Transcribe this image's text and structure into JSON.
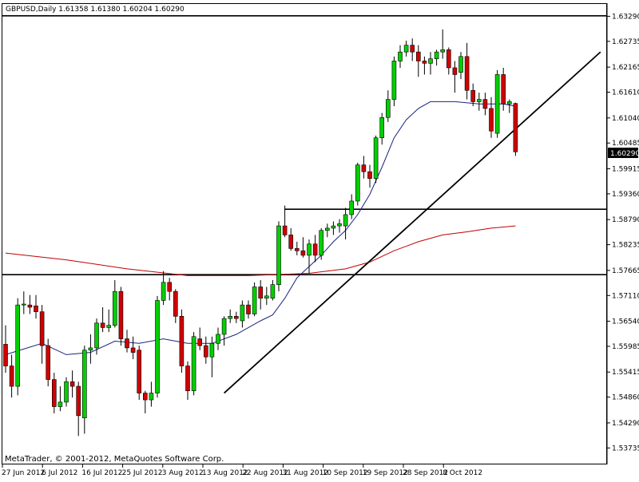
{
  "chart_data": {
    "type": "candlestick",
    "symbol_header": "GBPUSD,Daily  1.61358 1.61380 1.60204 1.60290",
    "copyright": "MetaTrader, © 2001-2012, MetaQuotes Software Corp.",
    "current_price_label": "1.60290",
    "y_range": [
      1.5337,
      1.6358
    ],
    "y_ticks": [
      "1.63290",
      "1.62735",
      "1.62165",
      "1.61610",
      "1.61040",
      "1.60485",
      "1.59915",
      "1.59360",
      "1.58790",
      "1.58235",
      "1.57665",
      "1.57110",
      "1.56540",
      "1.55985",
      "1.55415",
      "1.54860",
      "1.54290",
      "1.53735"
    ],
    "x_ticks": [
      "27 Jun 2012",
      "6 Jul 2012",
      "16 Jul 2012",
      "25 Jul 2012",
      "3 Aug 2012",
      "13 Aug 2012",
      "22 Aug 2012",
      "31 Aug 2012",
      "10 Sep 2012",
      "19 Sep 2012",
      "28 Sep 2012",
      "8 Oct 2012"
    ],
    "candles": [
      [
        1.5603,
        1.5645,
        1.554,
        1.5555
      ],
      [
        1.5555,
        1.558,
        1.5485,
        1.551
      ],
      [
        1.551,
        1.5705,
        1.549,
        1.569
      ],
      [
        1.569,
        1.572,
        1.567,
        1.5692
      ],
      [
        1.569,
        1.5712,
        1.567,
        1.5685
      ],
      [
        1.5688,
        1.5712,
        1.566,
        1.5675
      ],
      [
        1.5675,
        1.569,
        1.556,
        1.56
      ],
      [
        1.56,
        1.5615,
        1.551,
        1.5525
      ],
      [
        1.5525,
        1.554,
        1.545,
        1.5465
      ],
      [
        1.5465,
        1.551,
        1.5455,
        1.5475
      ],
      [
        1.5475,
        1.553,
        1.5465,
        1.552
      ],
      [
        1.552,
        1.5545,
        1.5485,
        1.551
      ],
      [
        1.551,
        1.552,
        1.54,
        1.5445
      ],
      [
        1.544,
        1.56,
        1.5405,
        1.559
      ],
      [
        1.559,
        1.5625,
        1.556,
        1.5595
      ],
      [
        1.5595,
        1.566,
        1.558,
        1.565
      ],
      [
        1.565,
        1.5685,
        1.563,
        1.564
      ],
      [
        1.564,
        1.568,
        1.563,
        1.5645
      ],
      [
        1.5645,
        1.5745,
        1.564,
        1.572
      ],
      [
        1.572,
        1.573,
        1.56,
        1.5615
      ],
      [
        1.5615,
        1.5635,
        1.5585,
        1.5595
      ],
      [
        1.5595,
        1.562,
        1.557,
        1.5585
      ],
      [
        1.559,
        1.56,
        1.548,
        1.5495
      ],
      [
        1.5495,
        1.55,
        1.545,
        1.548
      ],
      [
        1.548,
        1.552,
        1.5465,
        1.5495
      ],
      [
        1.5495,
        1.571,
        1.5485,
        1.57
      ],
      [
        1.57,
        1.5765,
        1.569,
        1.574
      ],
      [
        1.574,
        1.575,
        1.57,
        1.572
      ],
      [
        1.572,
        1.5725,
        1.565,
        1.5665
      ],
      [
        1.5665,
        1.568,
        1.554,
        1.5555
      ],
      [
        1.5555,
        1.5565,
        1.548,
        1.55
      ],
      [
        1.55,
        1.563,
        1.549,
        1.562
      ],
      [
        1.5615,
        1.564,
        1.559,
        1.56
      ],
      [
        1.56,
        1.562,
        1.556,
        1.5575
      ],
      [
        1.5575,
        1.562,
        1.553,
        1.5605
      ],
      [
        1.5605,
        1.564,
        1.559,
        1.5625
      ],
      [
        1.5625,
        1.5665,
        1.56,
        1.566
      ],
      [
        1.566,
        1.568,
        1.565,
        1.5665
      ],
      [
        1.5665,
        1.5675,
        1.565,
        1.566
      ],
      [
        1.5655,
        1.57,
        1.564,
        1.569
      ],
      [
        1.569,
        1.57,
        1.566,
        1.567
      ],
      [
        1.567,
        1.574,
        1.5665,
        1.573
      ],
      [
        1.573,
        1.5745,
        1.568,
        1.5705
      ],
      [
        1.5705,
        1.573,
        1.569,
        1.571
      ],
      [
        1.5705,
        1.5745,
        1.57,
        1.5735
      ],
      [
        1.5735,
        1.5875,
        1.572,
        1.5865
      ],
      [
        1.5865,
        1.591,
        1.584,
        1.5845
      ],
      [
        1.5845,
        1.586,
        1.581,
        1.5815
      ],
      [
        1.5815,
        1.583,
        1.58,
        1.581
      ],
      [
        1.581,
        1.584,
        1.5795,
        1.58
      ],
      [
        1.58,
        1.5835,
        1.576,
        1.5825
      ],
      [
        1.5825,
        1.5845,
        1.5785,
        1.58
      ],
      [
        1.58,
        1.586,
        1.579,
        1.5855
      ],
      [
        1.5855,
        1.587,
        1.584,
        1.586
      ],
      [
        1.586,
        1.5875,
        1.5845,
        1.5865
      ],
      [
        1.5865,
        1.588,
        1.585,
        1.587
      ],
      [
        1.5865,
        1.5905,
        1.5835,
        1.589
      ],
      [
        1.589,
        1.5935,
        1.588,
        1.592
      ],
      [
        1.592,
        1.6005,
        1.591,
        1.6
      ],
      [
        1.6,
        1.602,
        1.597,
        1.5985
      ],
      [
        1.5985,
        1.6,
        1.595,
        1.597
      ],
      [
        1.597,
        1.6065,
        1.596,
        1.606
      ],
      [
        1.606,
        1.6115,
        1.6045,
        1.6105
      ],
      [
        1.6105,
        1.6165,
        1.6095,
        1.6145
      ],
      [
        1.6145,
        1.624,
        1.613,
        1.623
      ],
      [
        1.623,
        1.6265,
        1.6215,
        1.625
      ],
      [
        1.625,
        1.6275,
        1.624,
        1.6265
      ],
      [
        1.6265,
        1.628,
        1.623,
        1.625
      ],
      [
        1.625,
        1.6265,
        1.6195,
        1.623
      ],
      [
        1.623,
        1.624,
        1.62,
        1.6225
      ],
      [
        1.6225,
        1.625,
        1.62,
        1.6235
      ],
      [
        1.6235,
        1.6255,
        1.622,
        1.625
      ],
      [
        1.625,
        1.63,
        1.6235,
        1.6255
      ],
      [
        1.6255,
        1.626,
        1.62,
        1.6215
      ],
      [
        1.6215,
        1.623,
        1.616,
        1.62
      ],
      [
        1.6205,
        1.625,
        1.619,
        1.624
      ],
      [
        1.624,
        1.627,
        1.6145,
        1.6165
      ],
      [
        1.6165,
        1.618,
        1.613,
        1.614
      ],
      [
        1.614,
        1.616,
        1.612,
        1.6145
      ],
      [
        1.6145,
        1.616,
        1.611,
        1.6125
      ],
      [
        1.6125,
        1.615,
        1.606,
        1.6075
      ],
      [
        1.607,
        1.621,
        1.606,
        1.62
      ],
      [
        1.62,
        1.6215,
        1.612,
        1.6135
      ],
      [
        1.6135,
        1.6145,
        1.6115,
        1.614
      ],
      [
        1.6136,
        1.6138,
        1.602,
        1.6029
      ]
    ],
    "ma_short": [
      [
        0,
        1.558
      ],
      [
        6,
        1.5605
      ],
      [
        10,
        1.558
      ],
      [
        14,
        1.5585
      ],
      [
        18,
        1.561
      ],
      [
        22,
        1.5605
      ],
      [
        26,
        1.5615
      ],
      [
        30,
        1.5605
      ],
      [
        34,
        1.5605
      ],
      [
        38,
        1.5625
      ],
      [
        42,
        1.5655
      ],
      [
        44,
        1.5668
      ],
      [
        46,
        1.5705
      ],
      [
        48,
        1.575
      ],
      [
        50,
        1.5775
      ],
      [
        52,
        1.58
      ],
      [
        54,
        1.583
      ],
      [
        56,
        1.5855
      ],
      [
        58,
        1.589
      ],
      [
        60,
        1.5935
      ],
      [
        62,
        1.5995
      ],
      [
        64,
        1.606
      ],
      [
        66,
        1.61
      ],
      [
        68,
        1.6125
      ],
      [
        70,
        1.614
      ],
      [
        74,
        1.614
      ],
      [
        78,
        1.6135
      ],
      [
        82,
        1.6135
      ],
      [
        84,
        1.613
      ]
    ],
    "ma_long": [
      [
        0,
        1.5805
      ],
      [
        10,
        1.579
      ],
      [
        20,
        1.577
      ],
      [
        30,
        1.5755
      ],
      [
        40,
        1.5755
      ],
      [
        50,
        1.576
      ],
      [
        56,
        1.577
      ],
      [
        60,
        1.5785
      ],
      [
        64,
        1.581
      ],
      [
        68,
        1.583
      ],
      [
        72,
        1.5845
      ],
      [
        76,
        1.5852
      ],
      [
        80,
        1.586
      ],
      [
        84,
        1.5865
      ]
    ],
    "horizontal_lines": [
      1.633,
      1.5902,
      1.5757
    ],
    "trendline": {
      "from": [
        36,
        1.5495
      ],
      "to": [
        98,
        1.625
      ]
    },
    "colors": {
      "bull": "#00d000",
      "bear": "#d00000",
      "ma_short": "#1a237e",
      "ma_long": "#c00000",
      "lines": "#000000"
    }
  }
}
